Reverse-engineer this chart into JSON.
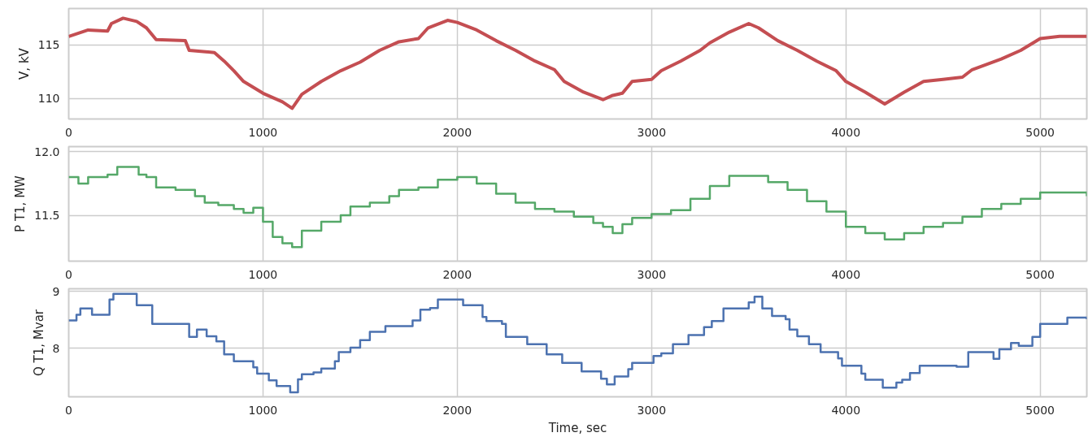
{
  "chart_data": [
    {
      "type": "line",
      "ylabel": "V, kV",
      "xlim": [
        0,
        5240
      ],
      "xticks": [
        0,
        1000,
        2000,
        3000,
        4000,
        5000
      ],
      "ylim": [
        108.1,
        118.4
      ],
      "yticks": [
        110,
        115
      ],
      "grid": true,
      "marker": "none",
      "line_style": "solid",
      "series": [
        {
          "color": "#c44e52",
          "x": [
            0,
            100,
            200,
            220,
            280,
            350,
            400,
            450,
            600,
            620,
            750,
            800,
            850,
            900,
            1000,
            1100,
            1150,
            1200,
            1300,
            1400,
            1500,
            1600,
            1700,
            1800,
            1850,
            1950,
            2000,
            2100,
            2200,
            2300,
            2400,
            2500,
            2550,
            2650,
            2750,
            2800,
            2850,
            2900,
            3000,
            3050,
            3150,
            3250,
            3300,
            3400,
            3500,
            3550,
            3650,
            3750,
            3850,
            3950,
            4000,
            4100,
            4200,
            4300,
            4400,
            4500,
            4600,
            4650,
            4800,
            4900,
            5000,
            5100,
            5240
          ],
          "values": [
            115.8,
            116.4,
            116.3,
            117.0,
            117.5,
            117.2,
            116.6,
            115.5,
            115.4,
            114.5,
            114.3,
            113.5,
            112.6,
            111.6,
            110.5,
            109.7,
            109.1,
            110.4,
            111.6,
            112.6,
            113.4,
            114.5,
            115.3,
            115.6,
            116.6,
            117.3,
            117.1,
            116.4,
            115.4,
            114.5,
            113.5,
            112.7,
            111.6,
            110.6,
            109.9,
            110.3,
            110.5,
            111.6,
            111.8,
            112.6,
            113.5,
            114.5,
            115.2,
            116.2,
            117.0,
            116.6,
            115.4,
            114.5,
            113.5,
            112.6,
            111.6,
            110.6,
            109.5,
            110.6,
            111.6,
            111.8,
            112.0,
            112.7,
            113.7,
            114.5,
            115.6,
            115.8,
            115.8
          ]
        }
      ]
    },
    {
      "type": "step",
      "ylabel": "P T1, MW",
      "xlim": [
        0,
        5240
      ],
      "xticks": [
        0,
        1000,
        2000,
        3000,
        4000,
        5000
      ],
      "ylim": [
        11.14,
        12.04
      ],
      "yticks": [
        11.5,
        {
          "value": 12,
          "label": "12.0"
        }
      ],
      "grid": true,
      "marker": "none",
      "line_style": "solid",
      "series": [
        {
          "color": "#55a868",
          "x": [
            0,
            50,
            100,
            150,
            200,
            250,
            330,
            360,
            400,
            450,
            550,
            650,
            700,
            770,
            850,
            900,
            950,
            1000,
            1050,
            1100,
            1150,
            1200,
            1300,
            1400,
            1450,
            1550,
            1650,
            1700,
            1800,
            1900,
            2000,
            2100,
            2200,
            2300,
            2400,
            2500,
            2600,
            2700,
            2750,
            2800,
            2850,
            2900,
            3000,
            3100,
            3200,
            3300,
            3400,
            3500,
            3600,
            3700,
            3800,
            3900,
            4000,
            4100,
            4200,
            4300,
            4400,
            4500,
            4600,
            4700,
            4800,
            4900,
            5000,
            5100,
            5240
          ],
          "values": [
            11.8,
            11.75,
            11.8,
            11.8,
            11.82,
            11.88,
            11.88,
            11.82,
            11.8,
            11.72,
            11.7,
            11.65,
            11.6,
            11.58,
            11.55,
            11.52,
            11.56,
            11.45,
            11.33,
            11.28,
            11.25,
            11.38,
            11.45,
            11.5,
            11.57,
            11.6,
            11.65,
            11.7,
            11.72,
            11.78,
            11.8,
            11.75,
            11.67,
            11.6,
            11.55,
            11.53,
            11.49,
            11.44,
            11.41,
            11.36,
            11.43,
            11.48,
            11.51,
            11.54,
            11.63,
            11.73,
            11.81,
            11.81,
            11.76,
            11.7,
            11.61,
            11.53,
            11.41,
            11.36,
            11.31,
            11.36,
            11.41,
            11.44,
            11.49,
            11.55,
            11.59,
            11.63,
            11.68,
            11.68,
            11.65
          ]
        }
      ]
    },
    {
      "type": "step",
      "ylabel": "Q T1, Mvar",
      "xlabel": "Time, sec",
      "xlim": [
        0,
        5240
      ],
      "xticks": [
        0,
        1000,
        2000,
        3000,
        4000,
        5000
      ],
      "ylim": [
        7.14,
        9.05
      ],
      "yticks": [
        8,
        9
      ],
      "grid": true,
      "marker": "none",
      "line_style": "solid",
      "series": [
        {
          "color": "#4c72b0",
          "x": [
            0,
            40,
            60,
            120,
            210,
            230,
            350,
            430,
            620,
            660,
            710,
            760,
            800,
            850,
            950,
            970,
            1030,
            1070,
            1140,
            1180,
            1200,
            1260,
            1300,
            1370,
            1390,
            1450,
            1500,
            1550,
            1630,
            1770,
            1810,
            1860,
            1900,
            2030,
            2130,
            2150,
            2230,
            2250,
            2360,
            2460,
            2540,
            2640,
            2740,
            2770,
            2810,
            2880,
            2900,
            3010,
            3050,
            3110,
            3190,
            3270,
            3310,
            3370,
            3500,
            3530,
            3570,
            3620,
            3690,
            3710,
            3750,
            3810,
            3870,
            3960,
            3980,
            4080,
            4100,
            4190,
            4260,
            4290,
            4330,
            4380,
            4570,
            4630,
            4760,
            4790,
            4850,
            4890,
            4960,
            5000,
            5140,
            5240
          ],
          "values": [
            8.49,
            8.59,
            8.7,
            8.59,
            8.86,
            8.96,
            8.76,
            8.43,
            8.2,
            8.33,
            8.21,
            8.12,
            7.89,
            7.77,
            7.66,
            7.55,
            7.43,
            7.33,
            7.22,
            7.45,
            7.54,
            7.57,
            7.64,
            7.77,
            7.93,
            8.01,
            8.14,
            8.29,
            8.39,
            8.49,
            8.68,
            8.71,
            8.86,
            8.76,
            8.55,
            8.48,
            8.43,
            8.2,
            8.07,
            7.89,
            7.74,
            7.59,
            7.46,
            7.36,
            7.5,
            7.63,
            7.74,
            7.86,
            7.91,
            8.07,
            8.23,
            8.37,
            8.48,
            8.7,
            8.81,
            8.91,
            8.7,
            8.57,
            8.51,
            8.33,
            8.21,
            8.07,
            7.93,
            7.82,
            7.69,
            7.55,
            7.44,
            7.3,
            7.39,
            7.44,
            7.56,
            7.69,
            7.67,
            7.93,
            7.81,
            7.98,
            8.09,
            8.04,
            8.2,
            8.43,
            8.54,
            8.51
          ]
        }
      ]
    }
  ]
}
